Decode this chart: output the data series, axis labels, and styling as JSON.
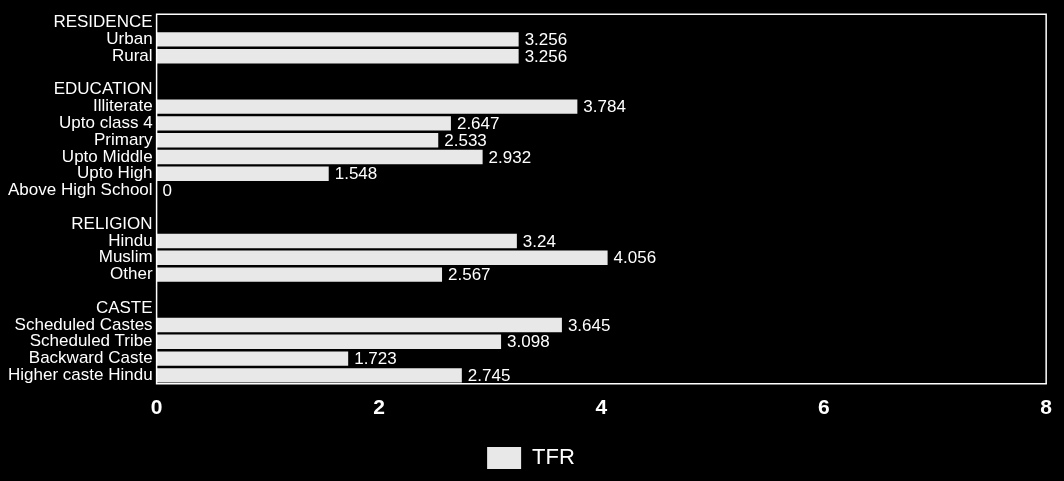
{
  "chart_data": {
    "type": "bar",
    "orientation": "horizontal",
    "categories": [
      "RESIDENCE",
      "Urban",
      "Rural",
      null,
      "EDUCATION",
      "Illiterate",
      "Upto class 4",
      "Primary",
      "Upto Middle",
      "Upto High",
      "Above High School",
      null,
      "RELIGION",
      "Hindu",
      "Muslim",
      "Other",
      null,
      "CASTE",
      "Scheduled Castes",
      "Scheduled Tribe",
      "Backward Caste",
      "Higher caste Hindu"
    ],
    "series": [
      {
        "name": "TFR",
        "color": "#e8e8e8",
        "values": [
          null,
          3.256,
          3.256,
          null,
          null,
          3.784,
          2.647,
          2.533,
          2.932,
          1.548,
          0,
          null,
          null,
          3.24,
          4.056,
          2.567,
          null,
          null,
          3.645,
          3.098,
          1.723,
          2.745
        ]
      }
    ],
    "xlim": [
      0,
      8
    ],
    "xticks": [
      0,
      2,
      4,
      6,
      8
    ],
    "grid": false,
    "legend": "bottom",
    "data_labels": true
  }
}
